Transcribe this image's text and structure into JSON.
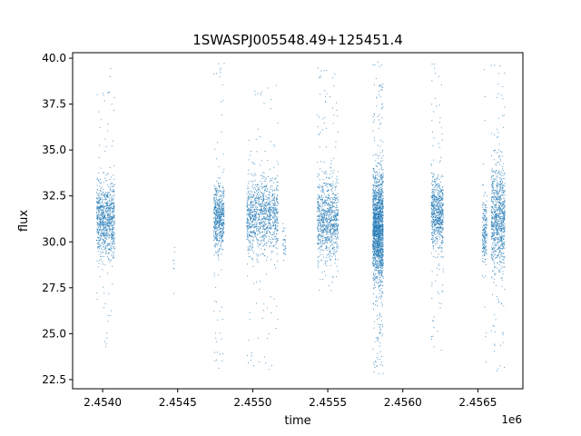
{
  "chart_data": {
    "type": "scatter",
    "title": "1SWASPJ005548.49+125451.4",
    "xlabel": "time",
    "ylabel": "flux",
    "x_offset_label": "1e6",
    "xlim": [
      2453800,
      2456800
    ],
    "ylim": [
      22.0,
      40.3
    ],
    "x_ticks": [
      2454000,
      2454500,
      2455000,
      2455500,
      2456000,
      2456500
    ],
    "x_tick_labels": [
      "2.4540",
      "2.4545",
      "2.4550",
      "2.4555",
      "2.4560",
      "2.4565"
    ],
    "y_ticks": [
      22.5,
      25.0,
      27.5,
      30.0,
      32.5,
      35.0,
      37.5,
      40.0
    ],
    "y_tick_labels": [
      "22.5",
      "25.0",
      "27.5",
      "30.0",
      "32.5",
      "35.0",
      "37.5",
      "40.0"
    ],
    "grid": false,
    "marker_color": "#1f77b4",
    "series": [
      {
        "clusters": [
          {
            "x_start": 2453960,
            "x_end": 2454080,
            "y_low": 28.5,
            "y_high": 34.0,
            "y_min": 23.0,
            "y_max": 39.8,
            "count": 900
          },
          {
            "x_start": 2454470,
            "x_end": 2454480,
            "y_low": 27.5,
            "y_high": 30.8,
            "y_min": 24.8,
            "y_max": 31.0,
            "count": 8
          },
          {
            "x_start": 2454740,
            "x_end": 2454810,
            "y_low": 29.0,
            "y_high": 33.5,
            "y_min": 23.0,
            "y_max": 39.8,
            "count": 600
          },
          {
            "x_start": 2454960,
            "x_end": 2455170,
            "y_low": 29.0,
            "y_high": 34.0,
            "y_min": 23.0,
            "y_max": 39.2,
            "count": 1100
          },
          {
            "x_start": 2455200,
            "x_end": 2455220,
            "y_low": 28.5,
            "y_high": 31.0,
            "y_min": 28.5,
            "y_max": 31.0,
            "count": 30
          },
          {
            "x_start": 2455430,
            "x_end": 2455570,
            "y_low": 28.5,
            "y_high": 34.0,
            "y_min": 27.3,
            "y_max": 39.5,
            "count": 900
          },
          {
            "x_start": 2455800,
            "x_end": 2455870,
            "y_low": 27.0,
            "y_high": 34.5,
            "y_min": 22.7,
            "y_max": 39.8,
            "count": 1800
          },
          {
            "x_start": 2456190,
            "x_end": 2456270,
            "y_low": 29.0,
            "y_high": 34.0,
            "y_min": 24.0,
            "y_max": 39.8,
            "count": 700
          },
          {
            "x_start": 2456530,
            "x_end": 2456560,
            "y_low": 28.0,
            "y_high": 33.0,
            "y_min": 22.8,
            "y_max": 39.5,
            "count": 200
          },
          {
            "x_start": 2456590,
            "x_end": 2456680,
            "y_low": 27.5,
            "y_high": 35.0,
            "y_min": 22.8,
            "y_max": 39.8,
            "count": 900
          }
        ]
      }
    ]
  }
}
